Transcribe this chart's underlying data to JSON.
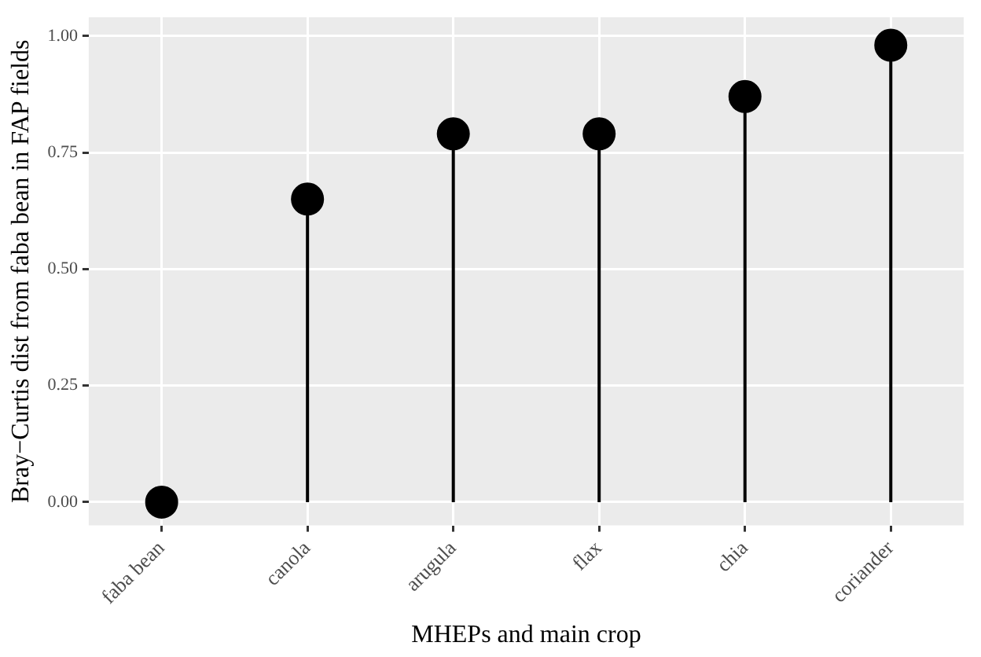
{
  "chart_data": {
    "type": "lollipop",
    "xlabel": "MHEPs and main crop",
    "ylabel": "Bray−Curtis dist from faba bean in FAP fields",
    "categories": [
      "faba bean",
      "canola",
      "arugula",
      "flax",
      "chia",
      "coriander"
    ],
    "values": [
      0,
      0.65,
      0.79,
      0.79,
      0.87,
      0.98
    ],
    "color": "#000000",
    "ylim": [
      -0.05,
      1.04
    ],
    "yticks": [
      {
        "value": 0,
        "label": "0.00"
      },
      {
        "value": 0.25,
        "label": "0.25"
      },
      {
        "value": 0.5,
        "label": "0.50"
      },
      {
        "value": 0.75,
        "label": "0.75"
      },
      {
        "value": 1,
        "label": "1.00"
      }
    ],
    "grid": true,
    "marker": "circle"
  }
}
